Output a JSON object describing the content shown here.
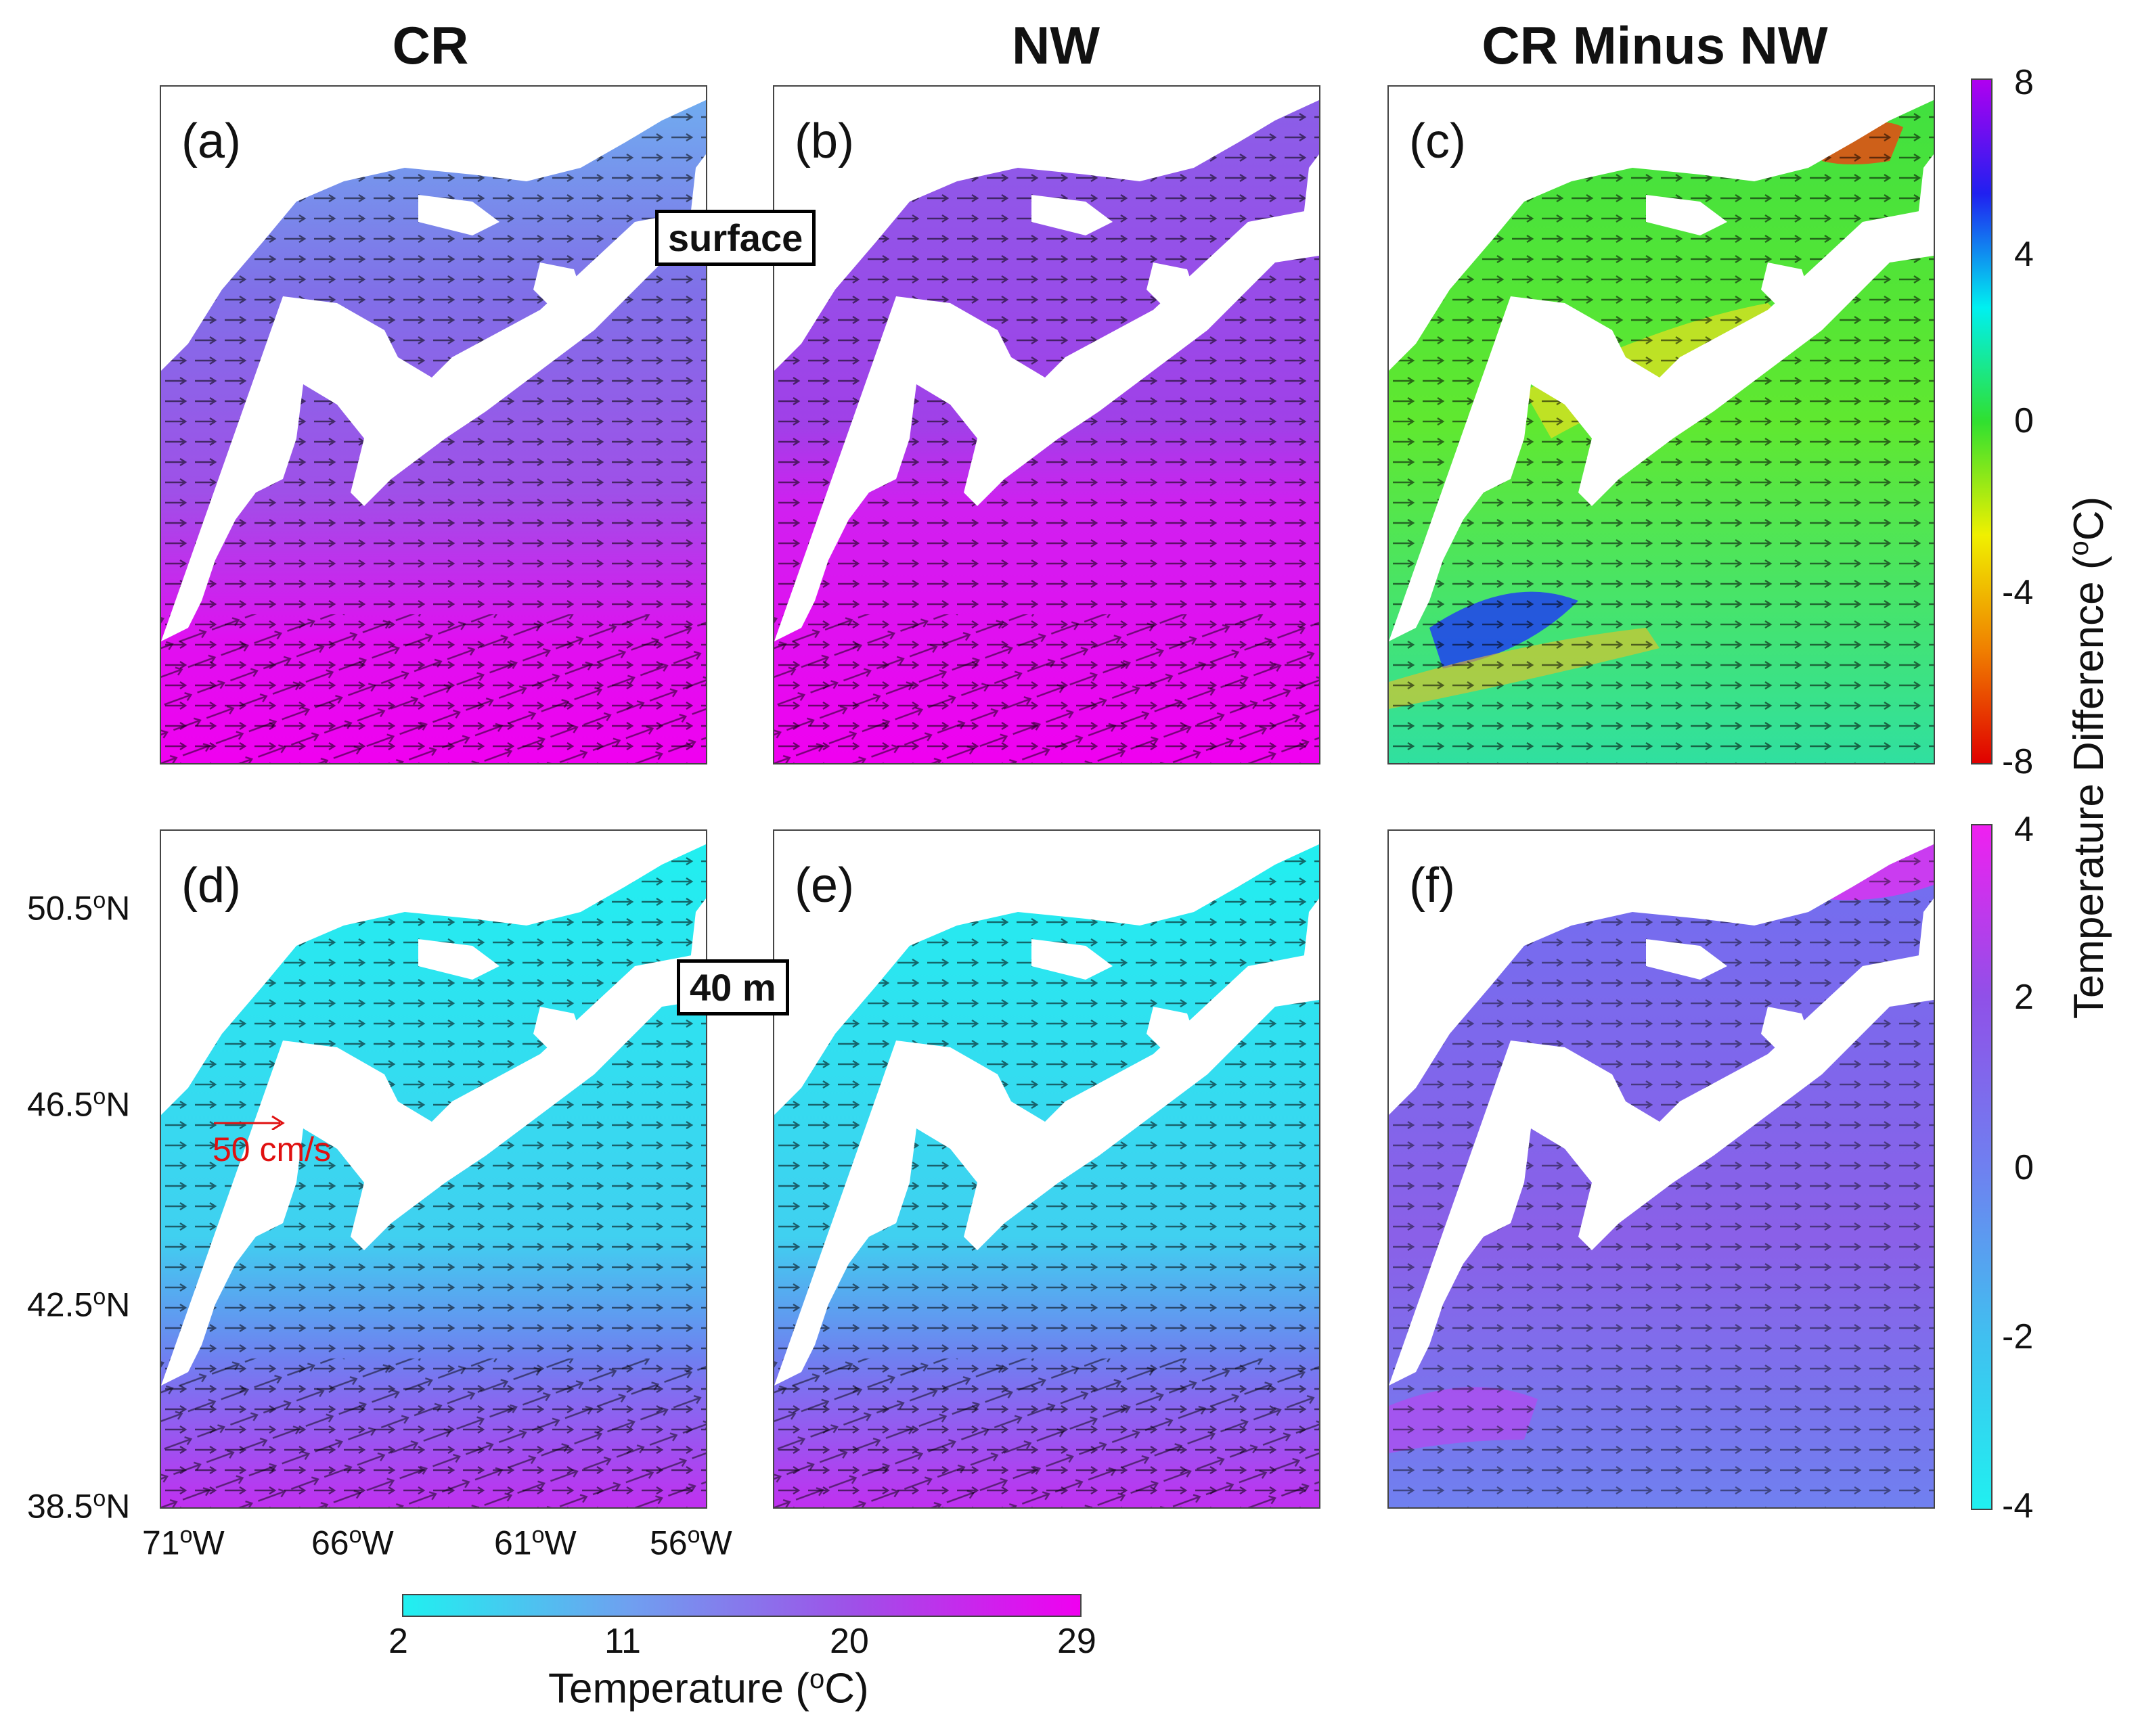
{
  "columns": {
    "cr": "CR",
    "nw": "NW",
    "diff": "CR Minus NW"
  },
  "panels": {
    "a": "(a)",
    "b": "(b)",
    "c": "(c)",
    "d": "(d)",
    "e": "(e)",
    "f": "(f)"
  },
  "depths": {
    "surface": "surface",
    "forty": "40 m"
  },
  "lat_ticks": [
    "50.5",
    "46.5",
    "42.5",
    "38.5"
  ],
  "lat_unit_sup": "o",
  "lat_suffix": "N",
  "lon_ticks": [
    "71",
    "66",
    "61",
    "56"
  ],
  "lon_suffix": "W",
  "scale_vector": "50 cm/s",
  "temp_colorbar": {
    "ticks": [
      "2",
      "11",
      "20",
      "29"
    ],
    "label_prefix": "Temperature (",
    "label_sup": "o",
    "label_suffix": "C)",
    "colors": [
      "#20f0f0",
      "#6fa0f0",
      "#9f50e8",
      "#f000f0"
    ]
  },
  "diff_colorbar_surface": {
    "ticks": [
      "8",
      "4",
      "0",
      "-4",
      "-8"
    ],
    "colors": [
      "#b000f0",
      "#2020f0",
      "#00f0f0",
      "#30e030",
      "#f0f000",
      "#f08000",
      "#e00000"
    ]
  },
  "diff_colorbar_40m": {
    "ticks": [
      "4",
      "2",
      "0",
      "-2",
      "-4"
    ],
    "colors": [
      "#f020f0",
      "#9050e8",
      "#6f80f0",
      "#40c0f0",
      "#20f0f0"
    ]
  },
  "diff_label": {
    "prefix": "Temperature Difference (",
    "sup": "o",
    "suffix": "C)"
  }
}
